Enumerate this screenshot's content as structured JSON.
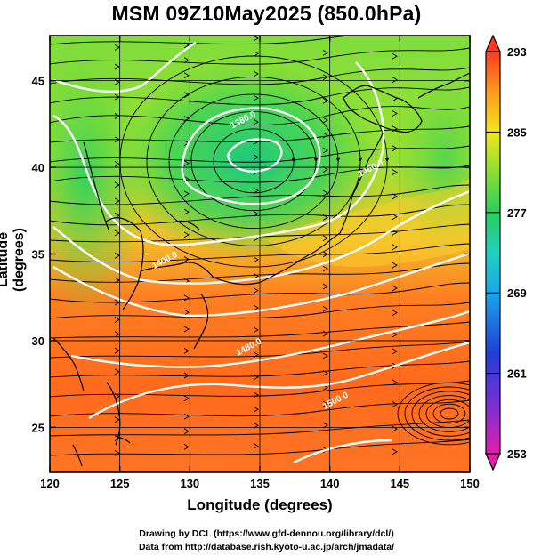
{
  "title": "MSM 09Z10May2025 (850.0hPa)",
  "xlabel": "Longitude (degrees)",
  "ylabel": "Latitude (degrees)",
  "footer": {
    "line1": "Drawing by DCL (https://www.gfd-dennou.org/library/dcl/)",
    "line2": "Data from http://database.rish.kyoto-u.ac.jp/arch/jmadata/"
  },
  "map": {
    "lon_range": [
      120,
      150
    ],
    "lat_range": [
      22.4,
      47.6
    ],
    "x_ticks": [
      120,
      125,
      130,
      135,
      140,
      145,
      150
    ],
    "y_ticks": [
      25,
      30,
      35,
      40,
      45
    ],
    "field": "temperature (K)",
    "colorbar": {
      "min": 253,
      "max": 293,
      "ticks": [
        253,
        261,
        269,
        277,
        285,
        293
      ]
    },
    "contours": [
      {
        "label": "1380.0",
        "lon": 133.9,
        "lat": 42.6
      },
      {
        "label": "1400.0",
        "lon": 128.3,
        "lat": 34.5
      },
      {
        "label": "1460.0",
        "lon": 143.0,
        "lat": 39.8
      },
      {
        "label": "1480.0",
        "lon": 134.3,
        "lat": 29.5
      },
      {
        "label": "1500.0",
        "lon": 140.5,
        "lat": 26.4
      }
    ]
  }
}
